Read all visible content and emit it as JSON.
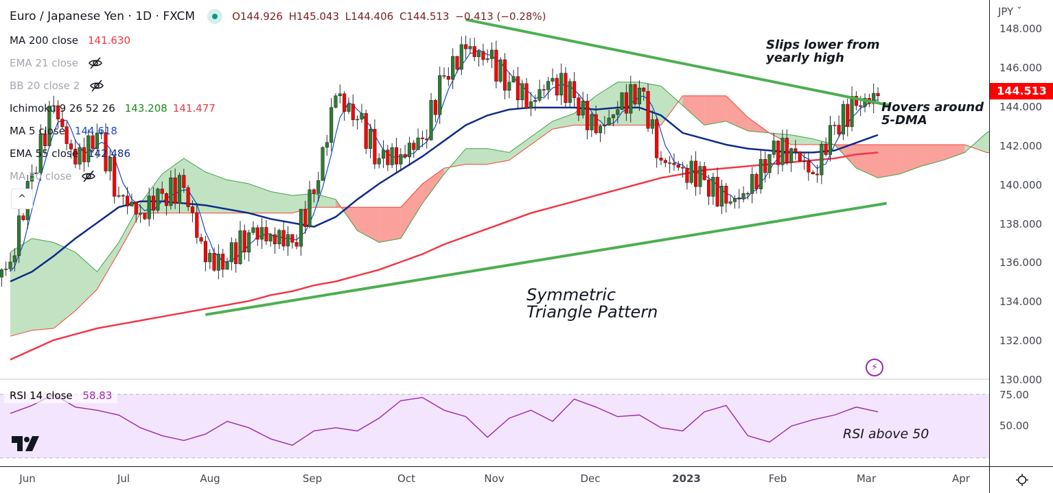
{
  "header": {
    "symbol_title": "Euro / Japanese Yen · 1D · FXCM",
    "open": "O144.926",
    "high": "H145.043",
    "low": "L144.406",
    "close": "C144.513",
    "change": "−0.413 (−0.28%)"
  },
  "indicators": [
    {
      "label": "MA 200 close",
      "value": "141.630",
      "color": "#f23645",
      "hidden": false
    },
    {
      "label": "EMA 21 close",
      "value": null,
      "hidden": true
    },
    {
      "label": "BB 20 close 2",
      "value": null,
      "hidden": true
    },
    {
      "label": "Ichimoku 9 26 52 26",
      "value": "143.208",
      "value2": "141.477",
      "color": "#1b8a1b",
      "color2": "#f23645",
      "hidden": false
    },
    {
      "label": "MA 5 close",
      "value": "144.618",
      "color": "#1848cc",
      "hidden": false
    },
    {
      "label": "EMA 55 close",
      "value": "142.486",
      "color": "#0d2a8a",
      "hidden": false
    },
    {
      "label": "MA 50 close",
      "value": null,
      "hidden": true
    }
  ],
  "price_axis": {
    "currency": "JPY",
    "ticks": [
      "148.000",
      "146.000",
      "144.000",
      "142.000",
      "140.000",
      "138.000",
      "136.000",
      "134.000",
      "132.000",
      "130.000"
    ],
    "last_price": "144.513"
  },
  "rsi": {
    "label": "RSI 14 close",
    "value": "58.83",
    "ticks": [
      "75.00",
      "50.00"
    ]
  },
  "time_axis": [
    "Jun",
    "Jul",
    "Aug",
    "Sep",
    "Oct",
    "Nov",
    "Dec",
    "2023",
    "Feb",
    "Mar",
    "Apr"
  ],
  "annotations": {
    "slips": "Slips lower from yearly high",
    "hovers": "Hovers around 5-DMA",
    "triangle": "Symmetric Triangle Pattern",
    "rsi_note": "RSI above 50"
  },
  "colors": {
    "up": "#2e7d32",
    "down": "#ff0000",
    "ma200": "#f23645",
    "ema55": "#0d2a8a",
    "ma5": "#1848cc",
    "rsi": "#9c27b0",
    "trend": "#4caf50"
  },
  "chart_data": {
    "type": "candlestick",
    "title": "Euro / Japanese Yen · 1D · FXCM",
    "x_unit": "week (approx., weekly closes from late May 2022 to 3 Mar 2023)",
    "ylim": [
      130,
      148.5
    ],
    "weekly_close": [
      136.0,
      140.5,
      144.0,
      141.0,
      142.6,
      139.4,
      138.5,
      139.5,
      139.8,
      136.0,
      136.0,
      137.5,
      137.4,
      137.0,
      139.5,
      144.5,
      143.3,
      141.3,
      141.5,
      142.3,
      145.5,
      146.9,
      146.4,
      145.2,
      144.2,
      145.4,
      144.4,
      142.6,
      143.8,
      144.9,
      141.2,
      140.8,
      140.2,
      139.0,
      139.5,
      141.5,
      141.8,
      140.5,
      143.0,
      144.0,
      144.5
    ],
    "ma200": [
      131.0,
      131.5,
      132.0,
      132.3,
      132.6,
      132.8,
      133.0,
      133.2,
      133.4,
      133.6,
      133.8,
      134.0,
      134.3,
      134.5,
      134.8,
      135.0,
      135.3,
      135.6,
      136.0,
      136.4,
      136.9,
      137.3,
      137.7,
      138.1,
      138.5,
      138.8,
      139.1,
      139.4,
      139.7,
      140.0,
      140.3,
      140.5,
      140.7,
      140.8,
      140.9,
      141.0,
      141.1,
      141.2,
      141.3,
      141.5,
      141.6
    ],
    "ema55": [
      135.0,
      135.5,
      136.3,
      137.2,
      138.0,
      138.8,
      139.1,
      139.1,
      139.0,
      138.9,
      138.7,
      138.5,
      138.2,
      138.0,
      137.8,
      138.3,
      139.2,
      140.0,
      140.7,
      141.4,
      142.2,
      143.0,
      143.5,
      143.8,
      143.9,
      143.9,
      143.9,
      143.8,
      143.9,
      143.9,
      143.5,
      142.6,
      142.3,
      142.0,
      141.8,
      141.7,
      141.6,
      141.6,
      141.7,
      142.1,
      142.5
    ],
    "ichimoku_span_a": [
      136.5,
      137.2,
      137.0,
      136.5,
      135.5,
      137.0,
      139.0,
      140.5,
      141.3,
      140.6,
      140.2,
      140.0,
      139.6,
      139.4,
      139.5,
      139.2,
      137.6,
      137.0,
      137.2,
      139.0,
      140.5,
      141.8,
      141.8,
      141.6,
      142.4,
      143.2,
      143.6,
      144.5,
      145.2,
      145.2,
      145.0,
      144.0,
      143.0,
      143.2,
      142.7,
      142.6,
      142.5,
      142.3,
      142.0,
      140.8,
      140.3,
      140.5,
      140.9,
      141.2,
      141.6,
      142.6,
      143.2
    ],
    "ichimoku_span_b": [
      132.2,
      132.5,
      132.6,
      133.5,
      134.6,
      136.5,
      138.5,
      138.5,
      138.5,
      138.5,
      138.5,
      138.5,
      138.5,
      138.5,
      138.8,
      138.8,
      138.8,
      138.8,
      138.8,
      140.0,
      140.8,
      141.0,
      141.0,
      141.2,
      142.0,
      142.8,
      143.0,
      143.0,
      143.0,
      143.0,
      143.0,
      144.5,
      144.5,
      144.5,
      143.4,
      142.6,
      142.0,
      142.0,
      142.0,
      142.0,
      142.0,
      142.0,
      142.0,
      142.0,
      142.0,
      141.6,
      141.5
    ],
    "trendlines": [
      {
        "name": "upper",
        "from": [
          21,
          148.4
        ],
        "to": [
          40.6,
          144.0
        ]
      },
      {
        "name": "lower",
        "from": [
          9,
          133.3
        ],
        "to": [
          40.4,
          139.0
        ]
      }
    ],
    "rsi_values": [
      58,
      63,
      70,
      62,
      60,
      57,
      49,
      44,
      41,
      45,
      53,
      49,
      42,
      38,
      47,
      49,
      47,
      55,
      66,
      68,
      60,
      56,
      43,
      55,
      60,
      53,
      67,
      62,
      56,
      57,
      49,
      47,
      59,
      63,
      44,
      40,
      50,
      54,
      57,
      62,
      59
    ],
    "rsi_levels": [
      70,
      50,
      30
    ]
  }
}
